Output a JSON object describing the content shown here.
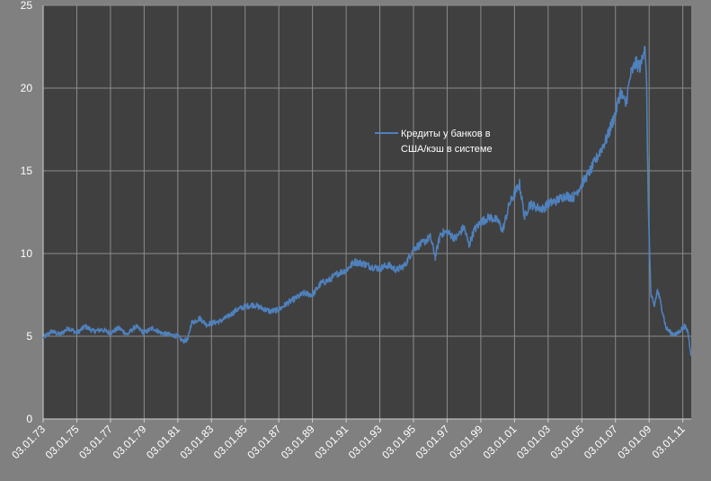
{
  "chart_data": {
    "type": "line",
    "title": "",
    "xlabel": "",
    "ylabel": "",
    "ylim": [
      0,
      25
    ],
    "y_ticks": [
      "0",
      "5",
      "10",
      "15",
      "20",
      "25"
    ],
    "x_tick_labels": [
      "03.01.73",
      "03.01.75",
      "03.01.77",
      "03.01.79",
      "03.01.81",
      "03.01.83",
      "03.01.85",
      "03.01.87",
      "03.01.89",
      "03.01.91",
      "03.01.93",
      "03.01.95",
      "03.01.97",
      "03.01.99",
      "03.01.01",
      "03.01.03",
      "03.01.05",
      "03.01.07",
      "03.01.09",
      "03.01.11"
    ],
    "x_range_years": [
      1973.0,
      2011.5
    ],
    "grid": "on",
    "plot_background": "#404040",
    "page_background": "#808080",
    "grid_color": "#8c8c8c",
    "legend": {
      "placement": "center-right",
      "lines": [
        "Кредиты  у банков в",
        "США/кэш  в системе"
      ]
    },
    "series": [
      {
        "name": "Кредиты  у банков в США/кэш  в системе",
        "color": "#4f81bd",
        "x": [
          1973.0,
          1973.5,
          1974.0,
          1974.5,
          1975.0,
          1975.5,
          1976.0,
          1976.5,
          1977.0,
          1977.5,
          1978.0,
          1978.5,
          1979.0,
          1979.5,
          1980.0,
          1980.5,
          1981.0,
          1981.3,
          1981.6,
          1981.8,
          1982.0,
          1982.3,
          1982.7,
          1983.0,
          1983.5,
          1984.0,
          1984.5,
          1985.0,
          1985.5,
          1986.0,
          1986.5,
          1987.0,
          1987.5,
          1988.0,
          1988.5,
          1989.0,
          1989.5,
          1990.0,
          1990.5,
          1991.0,
          1991.5,
          1992.0,
          1992.5,
          1993.0,
          1993.5,
          1994.0,
          1994.5,
          1995.0,
          1995.5,
          1996.0,
          1996.3,
          1996.6,
          1997.0,
          1997.5,
          1998.0,
          1998.3,
          1998.6,
          1999.0,
          1999.5,
          2000.0,
          2000.3,
          2000.7,
          2001.0,
          2001.3,
          2001.6,
          2001.9,
          2002.3,
          2002.7,
          2003.0,
          2003.5,
          2004.0,
          2004.5,
          2005.0,
          2005.5,
          2006.0,
          2006.5,
          2007.0,
          2007.3,
          2007.6,
          2007.9,
          2008.2,
          2008.5,
          2008.65,
          2008.75,
          2008.85,
          2008.95,
          2009.1,
          2009.3,
          2009.5,
          2009.8,
          2010.0,
          2010.3,
          2010.6,
          2010.9,
          2011.1,
          2011.3,
          2011.5
        ],
        "values": [
          4.9,
          5.3,
          5.1,
          5.5,
          5.2,
          5.6,
          5.3,
          5.4,
          5.2,
          5.5,
          5.1,
          5.6,
          5.2,
          5.5,
          5.2,
          5.1,
          5.0,
          4.7,
          4.8,
          5.8,
          5.9,
          6.1,
          5.7,
          5.8,
          5.9,
          6.2,
          6.6,
          6.8,
          6.9,
          6.7,
          6.5,
          6.6,
          7.0,
          7.3,
          7.6,
          7.5,
          8.2,
          8.4,
          8.8,
          9.0,
          9.5,
          9.4,
          9.2,
          9.1,
          9.3,
          9.0,
          9.3,
          10.3,
          10.6,
          11.0,
          9.8,
          11.2,
          11.3,
          10.9,
          11.6,
          10.5,
          11.4,
          11.9,
          12.2,
          12.0,
          11.4,
          13.0,
          13.6,
          14.2,
          12.2,
          13.0,
          12.8,
          12.7,
          13.0,
          13.2,
          13.5,
          13.4,
          14.2,
          15.0,
          16.0,
          17.0,
          18.5,
          19.8,
          19.0,
          20.8,
          21.5,
          21.3,
          22.2,
          22.7,
          20.0,
          13.0,
          7.5,
          6.8,
          7.8,
          6.5,
          5.5,
          5.2,
          5.1,
          5.4,
          5.6,
          5.3,
          3.8
        ]
      }
    ]
  }
}
